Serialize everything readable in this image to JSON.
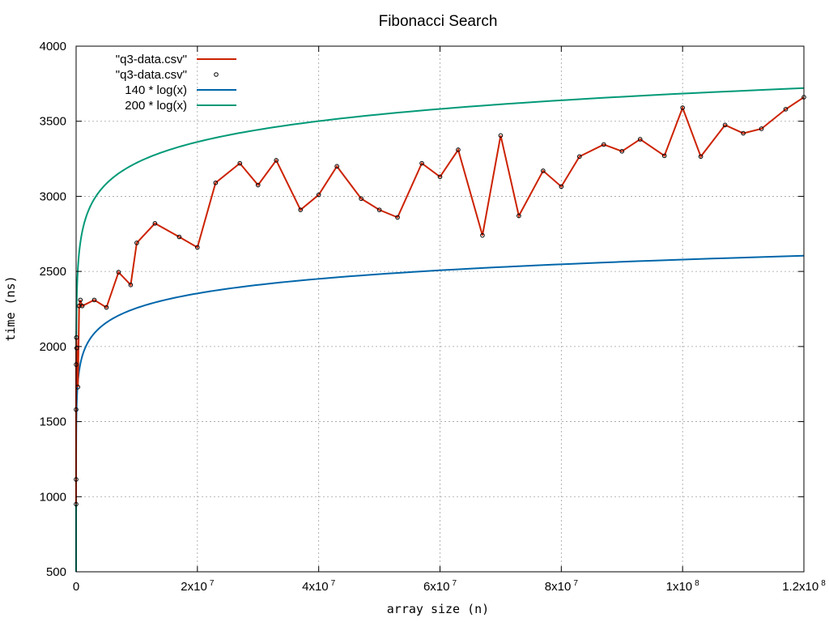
{
  "chart_data": {
    "type": "line",
    "title": "Fibonacci Search",
    "xlabel": "array size (n)",
    "ylabel": "time (ns)",
    "xlim": [
      0,
      120000000
    ],
    "ylim": [
      500,
      4000
    ],
    "grid": true,
    "legend_position": "top-left",
    "x_ticks": [
      {
        "value": 0,
        "mantissa": "0",
        "exponent": ""
      },
      {
        "value": 20000000,
        "mantissa": "2x10",
        "exponent": "7"
      },
      {
        "value": 40000000,
        "mantissa": "4x10",
        "exponent": "7"
      },
      {
        "value": 60000000,
        "mantissa": "6x10",
        "exponent": "7"
      },
      {
        "value": 80000000,
        "mantissa": "8x10",
        "exponent": "7"
      },
      {
        "value": 100000000,
        "mantissa": "1x10",
        "exponent": "8"
      },
      {
        "value": 120000000,
        "mantissa": "1.2x10",
        "exponent": "8"
      }
    ],
    "y_ticks": [
      {
        "value": 500,
        "label": "500"
      },
      {
        "value": 1000,
        "label": "1000"
      },
      {
        "value": 1500,
        "label": "1500"
      },
      {
        "value": 2000,
        "label": "2000"
      },
      {
        "value": 2500,
        "label": "2500"
      },
      {
        "value": 3000,
        "label": "3000"
      },
      {
        "value": 3500,
        "label": "3500"
      },
      {
        "value": 4000,
        "label": "4000"
      }
    ],
    "series": [
      {
        "name": "\"q3-data.csv\"",
        "kind": "line",
        "color": "#cc2200"
      },
      {
        "name": "\"q3-data.csv\"",
        "kind": "points",
        "color": "#000000"
      },
      {
        "name": "140 * log(x)",
        "kind": "function",
        "coef": 140,
        "color": "#0066aa"
      },
      {
        "name": "200 * log(x)",
        "kind": "function",
        "coef": 200,
        "color": "#009977"
      }
    ],
    "data": {
      "x": [
        10,
        100,
        1000,
        10000,
        50000,
        100000,
        300000,
        500000,
        700000,
        1000000,
        3000000,
        5000000,
        7000000,
        9000000,
        10000000,
        13000000,
        17000000,
        20000000,
        23000000,
        27000000,
        30000000,
        33000000,
        37000000,
        40000000,
        43000000,
        47000000,
        50000000,
        53000000,
        57000000,
        60000000,
        63000000,
        67000000,
        70000000,
        73000000,
        77000000,
        80000000,
        83000000,
        87000000,
        90000000,
        93000000,
        97000000,
        100000000,
        103000000,
        107000000,
        110000000,
        113000000,
        117000000,
        120000000
      ],
      "y": [
        950,
        1115,
        1580,
        1880,
        2060,
        1990,
        1730,
        2270,
        2310,
        2270,
        2310,
        2260,
        2495,
        2410,
        2690,
        2820,
        2730,
        2660,
        3090,
        3220,
        3075,
        3240,
        2910,
        3010,
        3200,
        2985,
        2910,
        2860,
        3220,
        3130,
        3310,
        2740,
        3405,
        2870,
        3170,
        3065,
        3265,
        3345,
        3300,
        3380,
        3270,
        3590,
        3265,
        3475,
        3420,
        3450,
        3580,
        3660
      ]
    }
  }
}
